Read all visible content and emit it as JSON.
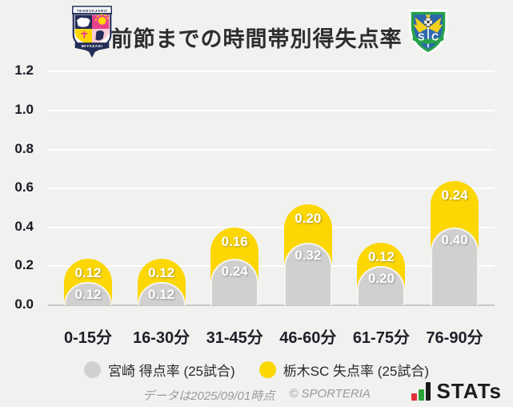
{
  "header": {
    "title": "前節までの時間帯別得失点率",
    "home_logo": {
      "club": "テゲバジャーロ宮崎",
      "top_text": "TEGEVAJARO",
      "bottom_text": "MIYAZAKI"
    },
    "away_logo": {
      "club": "栃木SC",
      "top_letter": "T",
      "left_letter": "S",
      "right_letter": "C"
    }
  },
  "chart_data": {
    "type": "bar",
    "stacked": true,
    "title": "前節までの時間帯別得失点率",
    "categories": [
      "0-15分",
      "16-30分",
      "31-45分",
      "46-60分",
      "61-75分",
      "76-90分"
    ],
    "series": [
      {
        "name": "宮崎 得点率 (25試合)",
        "role": "bottom-segment",
        "color": "#d1d0cf",
        "values": [
          0.12,
          0.12,
          0.24,
          0.32,
          0.2,
          0.4
        ]
      },
      {
        "name": "栃木SC 失点率 (25試合)",
        "role": "top-segment",
        "color": "#fcd703",
        "values": [
          0.12,
          0.12,
          0.16,
          0.2,
          0.12,
          0.24
        ]
      }
    ],
    "stack_totals": [
      0.24,
      0.24,
      0.4,
      0.52,
      0.32,
      0.64
    ],
    "ylim": [
      0,
      1.2
    ],
    "ytick_step": 0.2,
    "yticks": [
      "1.2",
      "1.0",
      "0.8",
      "0.6",
      "0.4",
      "0.2",
      "0.0"
    ],
    "grid": true,
    "legend_position": "bottom",
    "value_label_decimals": 2
  },
  "legend": {
    "items": [
      {
        "label": "宮崎 得点率 (25試合)",
        "color": "#d1d0cf"
      },
      {
        "label": "栃木SC 失点率 (25試合)",
        "color": "#fcd703"
      }
    ]
  },
  "footer": {
    "data_note": "データは2025/09/01時点",
    "copyright": "© SPORTERIA",
    "brand": "STATs"
  },
  "colors": {
    "background": "#f1f1f0",
    "gridline": "#ffffff",
    "baseline": "#c8c8c6",
    "axis_text": "#1a1a24",
    "title_text": "#2e2e2e",
    "bar_label_text": "#ffffff",
    "footer_text": "#9b9b99",
    "stats_red": "#e52f38",
    "stats_green": "#29a43a",
    "stats_dark": "#1c1c1c"
  }
}
